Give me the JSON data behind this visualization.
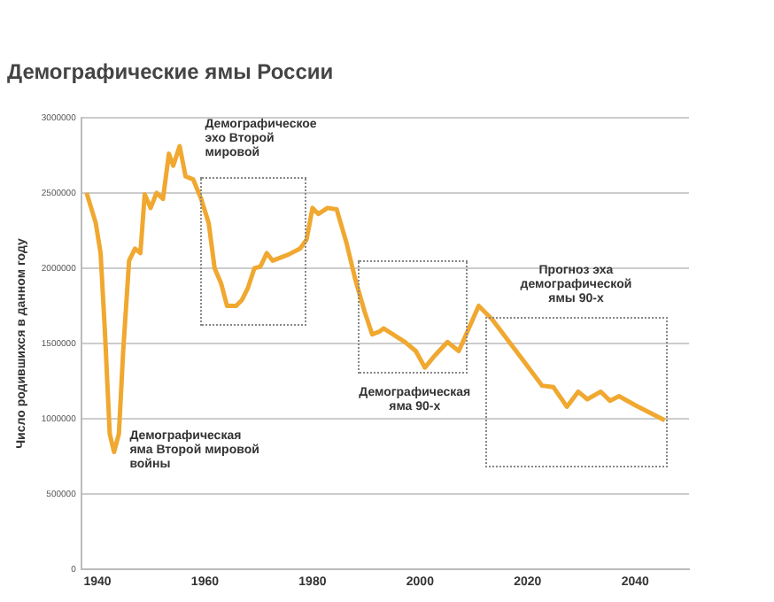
{
  "chart_data": {
    "type": "line",
    "title": "Демографические ямы России",
    "ylabel": "Число родившихся в данном году",
    "x": [
      1938,
      1939.7,
      1940.6,
      1941.4,
      1942.3,
      1943.1,
      1944,
      1944.8,
      1945.9,
      1947,
      1948,
      1948.8,
      1949.9,
      1951,
      1952.2,
      1953.3,
      1954.1,
      1955.3,
      1956.4,
      1957.8,
      1959.3,
      1960.7,
      1961.8,
      1963,
      1964.1,
      1965.8,
      1966.9,
      1968,
      1969.2,
      1970.3,
      1971.5,
      1972.6,
      1975.5,
      1977.7,
      1978.9,
      1980,
      1981.1,
      1982.8,
      1984.5,
      1986.3,
      1988,
      1989.7,
      1991.1,
      1992.5,
      1993.2,
      1997.2,
      1999.2,
      2000.9,
      2002.5,
      2005.1,
      2007.2,
      2008.8,
      2010.9,
      2013.4,
      2018.7,
      2022.7,
      2024.8,
      2027.3,
      2029.4,
      2031.1,
      2033.6,
      2035.3,
      2037,
      2040,
      2045.5
    ],
    "series": [
      {
        "color": "#f0a830",
        "values": [
          2500000,
          2300000,
          2100000,
          1580000,
          900000,
          780000,
          900000,
          1450000,
          2050000,
          2130000,
          2100000,
          2490000,
          2400000,
          2500000,
          2460000,
          2760000,
          2680000,
          2810000,
          2610000,
          2590000,
          2460000,
          2300000,
          2000000,
          1900000,
          1750000,
          1750000,
          1790000,
          1870000,
          2000000,
          2010000,
          2100000,
          2050000,
          2090000,
          2130000,
          2190000,
          2400000,
          2360000,
          2400000,
          2390000,
          2170000,
          1920000,
          1710000,
          1560000,
          1580000,
          1600000,
          1510000,
          1450000,
          1340000,
          1410000,
          1510000,
          1450000,
          1580000,
          1750000,
          1660000,
          1410000,
          1220000,
          1210000,
          1080000,
          1180000,
          1130000,
          1180000,
          1120000,
          1150000,
          1090000,
          990000
        ]
      }
    ],
    "xlim": [
      1937,
      2050
    ],
    "xticks": [
      1940,
      1960,
      1980,
      2000,
      2020,
      2040
    ],
    "ylim": [
      0,
      3000000
    ],
    "yticks": [
      0,
      500000,
      1000000,
      1500000,
      2000000,
      2500000,
      3000000
    ],
    "grid": "y",
    "legend": false,
    "marker": "none",
    "line_style": "solid",
    "annotations": [
      "Демографическая\nяма Второй мировой\nвойны",
      "Демографическое\nэхо Второй\nмировой",
      "Демографическая\nяма 90-х",
      "Прогноз эха\nдемографической\nямы 90-х"
    ]
  }
}
